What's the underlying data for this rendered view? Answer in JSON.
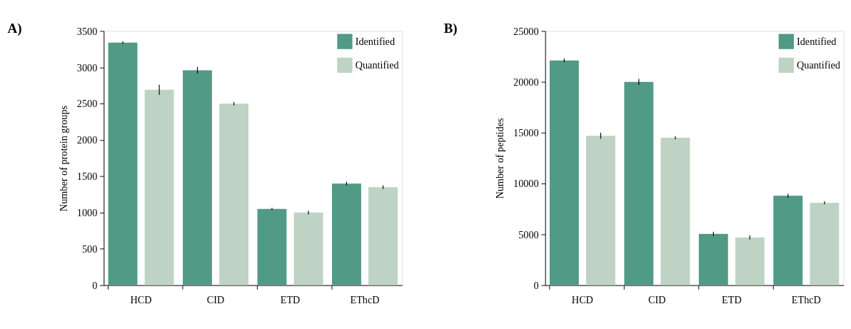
{
  "chart_data": [
    {
      "type": "bar",
      "title": "A)",
      "ylabel": "Number of protein groups",
      "categories": [
        "HCD",
        "CID",
        "ETD",
        "EThcD"
      ],
      "series": [
        {
          "name": "Identified",
          "color": "#519a85",
          "values": [
            3340,
            2960,
            1050,
            1400
          ],
          "errors": [
            20,
            45,
            15,
            25
          ]
        },
        {
          "name": "Quantified",
          "color": "#bed3c3",
          "values": [
            2690,
            2500,
            1000,
            1350
          ],
          "errors": [
            70,
            25,
            25,
            25
          ]
        }
      ],
      "ylim": [
        0,
        3500
      ],
      "yticks": [
        0,
        500,
        1000,
        1500,
        2000,
        2500,
        3000,
        3500
      ],
      "grid": false,
      "legend": "top right"
    },
    {
      "type": "bar",
      "title": "B)",
      "ylabel": "Number of peptides",
      "categories": [
        "HCD",
        "CID",
        "ETD",
        "EThcD"
      ],
      "series": [
        {
          "name": "Identified",
          "color": "#519a85",
          "values": [
            22100,
            20000,
            5050,
            8800
          ],
          "errors": [
            200,
            300,
            200,
            200
          ]
        },
        {
          "name": "Quantified",
          "color": "#bed3c3",
          "values": [
            14700,
            14500,
            4700,
            8100
          ],
          "errors": [
            300,
            150,
            200,
            150
          ]
        }
      ],
      "ylim": [
        0,
        25000
      ],
      "yticks": [
        0,
        5000,
        10000,
        15000,
        20000,
        25000
      ],
      "grid": false,
      "legend": "top right"
    }
  ]
}
